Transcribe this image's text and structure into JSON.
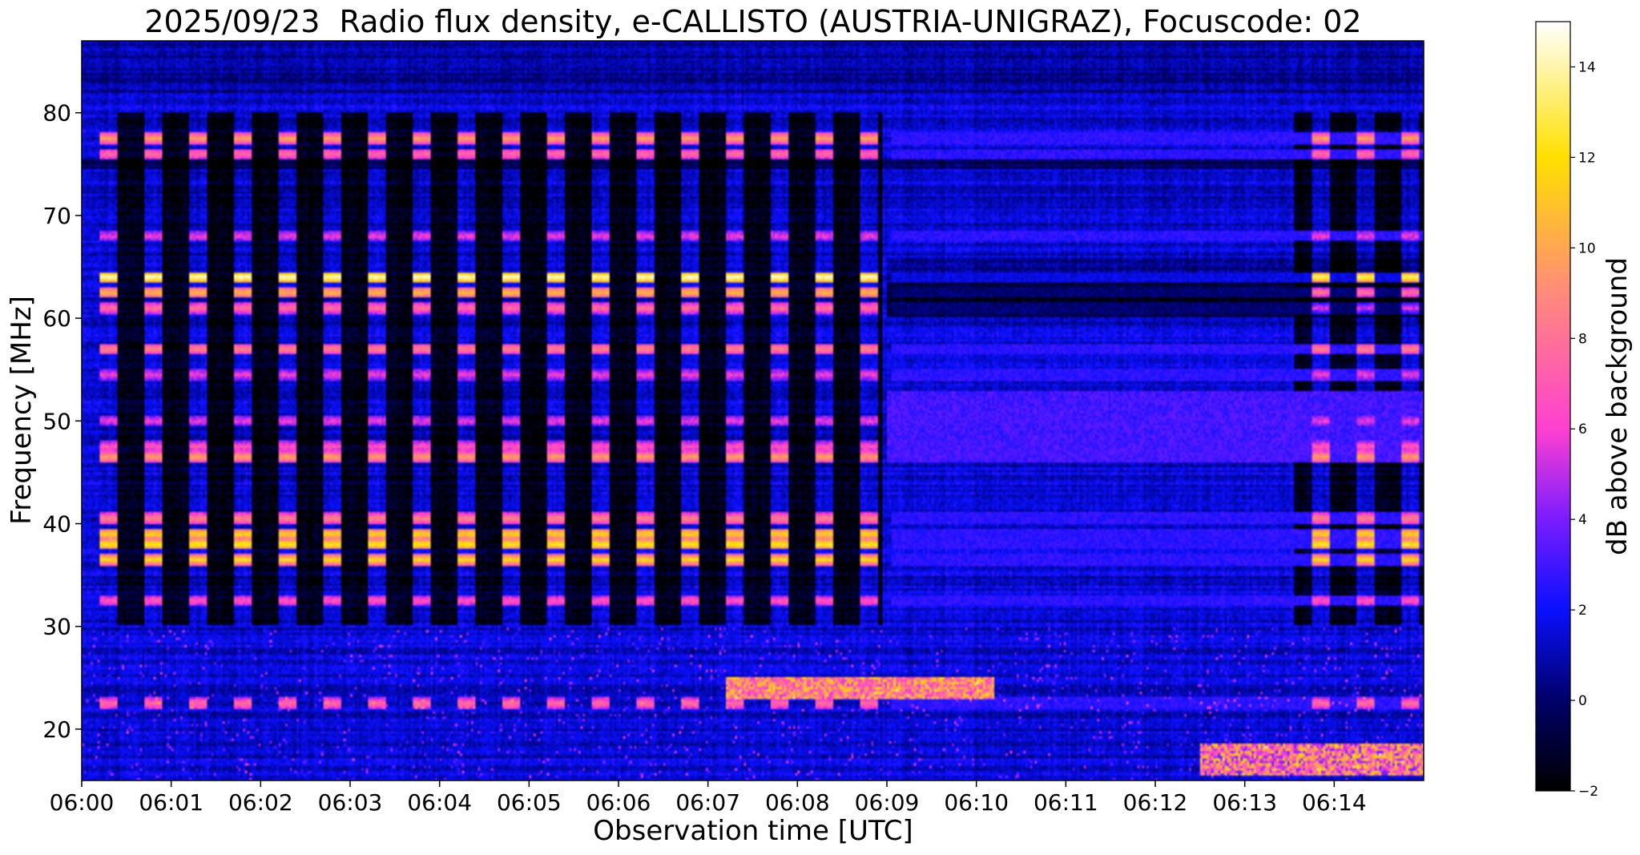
{
  "chart_data": {
    "type": "heatmap",
    "title": "2025/09/23  Radio flux density, e-CALLISTO (AUSTRIA-UNIGRAZ), Focuscode: 02",
    "xlabel": "Observation time [UTC]",
    "ylabel": "Frequency [MHz]",
    "x_ticks": [
      "06:00",
      "06:01",
      "06:02",
      "06:03",
      "06:04",
      "06:05",
      "06:06",
      "06:07",
      "06:08",
      "06:09",
      "06:10",
      "06:11",
      "06:12",
      "06:13",
      "06:14"
    ],
    "x_range_minutes": [
      0,
      15
    ],
    "y_ticks": [
      20,
      30,
      40,
      50,
      60,
      70,
      80
    ],
    "ylim": [
      15,
      87
    ],
    "grid": false,
    "colormap": "gnuplot2",
    "colorbar": {
      "label": "dB above background",
      "range": [
        -2,
        15
      ],
      "ticks": [
        -2,
        0,
        2,
        4,
        6,
        8,
        10,
        12,
        14
      ]
    },
    "features": {
      "pulsed_interference": {
        "period_min": 0.5,
        "first_pulse_min": 0.3,
        "last_pulse_min": 8.85,
        "pulse_width_min": 0.2,
        "late_pulses_min": [
          13.85,
          14.35,
          14.85
        ]
      },
      "pulse_bands_mhz": [
        {
          "freq": 77.5,
          "db": 10
        },
        {
          "freq": 76,
          "db": 8
        },
        {
          "freq": 68,
          "db": 6
        },
        {
          "freq": 64,
          "db": 15
        },
        {
          "freq": 62.5,
          "db": 11
        },
        {
          "freq": 61,
          "db": 8
        },
        {
          "freq": 57,
          "db": 9
        },
        {
          "freq": 54.5,
          "db": 6
        },
        {
          "freq": 50,
          "db": 6
        },
        {
          "freq": 47.5,
          "db": 7
        },
        {
          "freq": 46.5,
          "db": 10
        },
        {
          "freq": 40.5,
          "db": 9
        },
        {
          "freq": 39,
          "db": 12
        },
        {
          "freq": 38,
          "db": 13
        },
        {
          "freq": 36.5,
          "db": 12
        },
        {
          "freq": 32.5,
          "db": 7
        },
        {
          "freq": 22.5,
          "db": 8
        }
      ],
      "emission_burst": {
        "start_min": 7.2,
        "end_min": 10.2,
        "freq_mhz": [
          23,
          25
        ],
        "peak_db": 12
      },
      "low_freq_emission": {
        "start_min": 12.5,
        "end_min": 15,
        "freq_mhz": [
          15.5,
          18.5
        ],
        "peak_db": 12
      }
    }
  }
}
